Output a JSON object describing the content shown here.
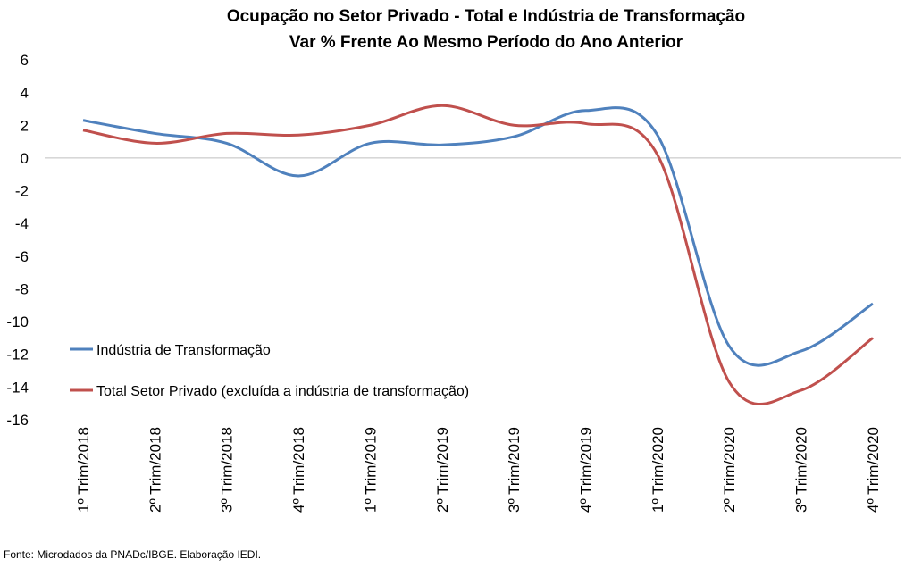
{
  "chart_data": {
    "type": "line",
    "title": "Ocupação no Setor Privado - Total e Indústria de Transformação",
    "subtitle": "Var % Frente Ao Mesmo Período do Ano Anterior",
    "xlabel": "",
    "ylabel": "",
    "categories": [
      "1º Trim/2018",
      "2º Trim/2018",
      "3º Trim/2018",
      "4º Trim/2018",
      "1º Trim/2019",
      "2º Trim/2019",
      "3º Trim/2019",
      "4º Trim/2019",
      "1º Trim/2020",
      "2º Trim/2020",
      "3º Trim/2020",
      "4º Trim/2020"
    ],
    "yticks": [
      "6",
      "4",
      "2",
      "0",
      "-2",
      "-4",
      "-6",
      "-8",
      "-10",
      "-12",
      "-14",
      "-16"
    ],
    "ylim": [
      -16,
      6
    ],
    "grid": false,
    "zero_line": true,
    "smooth": true,
    "legend_position": "bottom-left",
    "series": [
      {
        "name": "Indústria de Transformação",
        "color": "#4f81bd",
        "values": [
          2.3,
          1.5,
          0.9,
          -1.1,
          0.9,
          0.8,
          1.3,
          2.9,
          1.4,
          -11.5,
          -11.8,
          -8.9
        ]
      },
      {
        "name": "Total Setor Privado (excluída a indústria de transformação)",
        "color": "#c0504d",
        "values": [
          1.7,
          0.9,
          1.5,
          1.4,
          2.0,
          3.2,
          2.0,
          2.1,
          0.2,
          -13.7,
          -14.2,
          -11.0
        ]
      }
    ]
  },
  "source": "Fonte: Microdados da PNADc/IBGE. Elaboração IEDI."
}
